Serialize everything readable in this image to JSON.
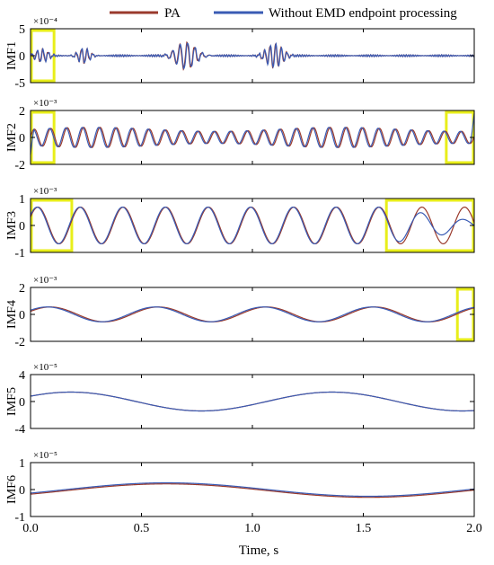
{
  "colors": {
    "pa": "#9a3a2c",
    "without": "#3a5bb4",
    "highlight": "#e8ee1a"
  },
  "chart_data": {
    "type": "line",
    "xlabel": "Time, s",
    "xlim": [
      0,
      2
    ],
    "x_ticks": [
      "0.0",
      "0.5",
      "1.0",
      "1.5",
      "2.0"
    ],
    "legend": {
      "placement": "top",
      "entries": [
        {
          "label": "PA",
          "color": "#9a3a2c"
        },
        {
          "label": "Without EMD endpoint processing",
          "color": "#3a5bb4"
        }
      ]
    },
    "panels": [
      {
        "ylabel": "IMF1",
        "exponent": "×10⁻⁴",
        "ylim": [
          -5,
          5
        ],
        "y_ticks": [
          5,
          0,
          -5
        ],
        "signal": {
          "kind": "bursts",
          "bursts": [
            {
              "center": 0.24,
              "width": 0.035,
              "amp": 1.4,
              "freq": 40
            },
            {
              "center": 0.7,
              "width": 0.06,
              "amp": 2.5,
              "freq": 30
            },
            {
              "center": 1.1,
              "width": 0.05,
              "amp": 2.2,
              "freq": 40
            },
            {
              "center": 0.05,
              "width": 0.04,
              "amp": 1.2,
              "freq": 40
            }
          ],
          "noise": 0.18
        },
        "highlights": [
          [
            0.0,
            0.11
          ]
        ]
      },
      {
        "ylabel": "IMF2",
        "exponent": "×10⁻³",
        "ylim": [
          -2,
          2
        ],
        "y_ticks": [
          2,
          0,
          -2
        ],
        "signal": {
          "kind": "sine",
          "amp": 0.6,
          "freq": 13.5,
          "phase_shift": 0.5,
          "amp_mod": 0.25
        },
        "end_spikes": true,
        "highlights": [
          [
            0.0,
            0.11
          ],
          [
            1.87,
            2.0
          ]
        ]
      },
      {
        "ylabel": "IMF3",
        "exponent": "×10⁻³",
        "ylim": [
          -1,
          1
        ],
        "y_ticks": [
          1,
          0,
          -1
        ],
        "signal": {
          "kind": "sine",
          "amp": 0.68,
          "freq": 5.2,
          "phase_shift": 0.12
        },
        "pa_tail": true,
        "highlights": [
          [
            0.0,
            0.19
          ],
          [
            1.6,
            2.0
          ]
        ]
      },
      {
        "ylabel": "IMF4",
        "exponent": "×10⁻³",
        "ylim": [
          -2,
          2
        ],
        "y_ticks": [
          2,
          0,
          -2
        ],
        "signal": {
          "kind": "sine",
          "amp": 0.55,
          "freq": 2.05,
          "phase_shift": 0.18
        },
        "highlights": [
          [
            1.92,
            2.0
          ]
        ]
      },
      {
        "ylabel": "IMF5",
        "exponent": "×10⁻⁵",
        "ylim": [
          -4,
          4
        ],
        "y_ticks": [
          4,
          0,
          -4
        ],
        "signal": {
          "kind": "sine",
          "amp": 1.4,
          "freq": 0.85,
          "phase_shift": 0.0
        },
        "highlights": []
      },
      {
        "ylabel": "IMF6",
        "exponent": "×10⁻⁵",
        "ylim": [
          -1,
          1
        ],
        "y_ticks": [
          1,
          0,
          -1
        ],
        "signal": {
          "kind": "slow",
          "amp": 0.25
        },
        "highlights": []
      }
    ]
  }
}
